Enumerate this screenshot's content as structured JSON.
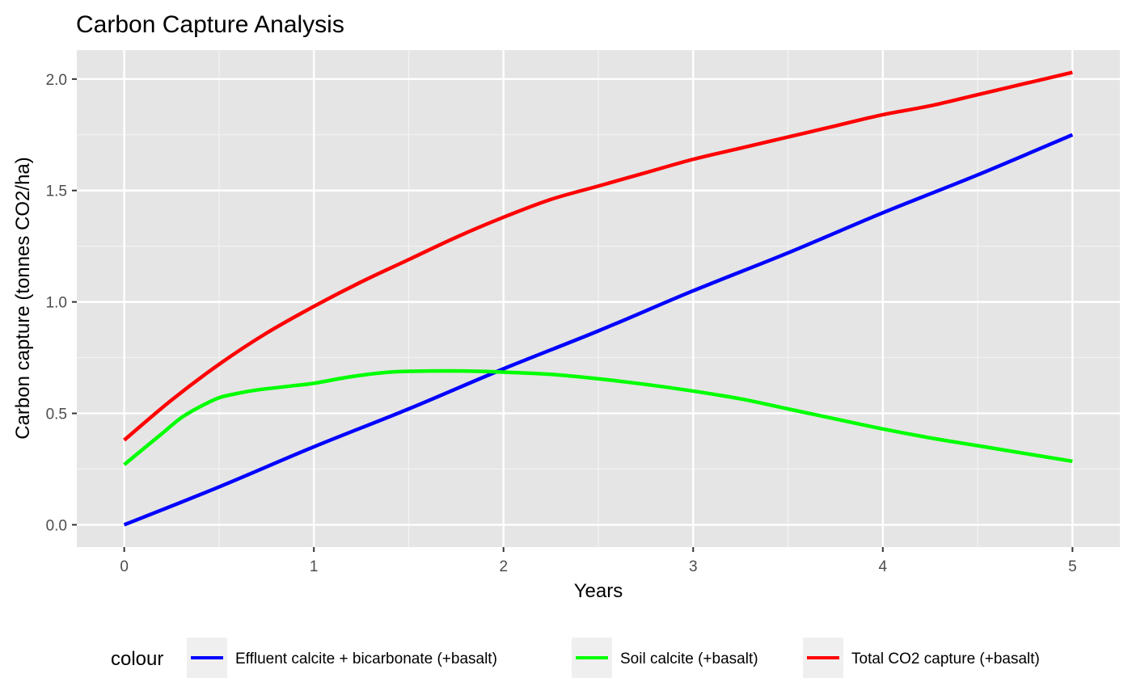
{
  "chart_data": {
    "type": "line",
    "title": "Carbon Capture Analysis",
    "xlabel": "Years",
    "ylabel": "Carbon capture (tonnes CO2/ha)",
    "xlim": [
      -0.25,
      5.25
    ],
    "ylim": [
      -0.1,
      2.13
    ],
    "x_ticks": [
      0,
      1,
      2,
      3,
      4,
      5
    ],
    "x_tick_labels": [
      "0",
      "1",
      "2",
      "3",
      "4",
      "5"
    ],
    "y_ticks": [
      0.0,
      0.5,
      1.0,
      1.5,
      2.0
    ],
    "y_tick_labels": [
      "0.0",
      "0.5",
      "1.0",
      "1.5",
      "2.0"
    ],
    "grid": true,
    "panel_background": "#e5e5e5",
    "legend": {
      "title": "colour",
      "position": "bottom"
    },
    "series": [
      {
        "name": "Effluent calcite + bicarbonate (+basalt)",
        "color": "#0000ff",
        "x": [
          0,
          0.5,
          1,
          1.5,
          2,
          2.5,
          3,
          3.5,
          4,
          4.5,
          5
        ],
        "y": [
          0.0,
          0.17,
          0.35,
          0.52,
          0.7,
          0.87,
          1.05,
          1.22,
          1.4,
          1.57,
          1.75
        ]
      },
      {
        "name": "Soil calcite (+basalt)",
        "color": "#00ff00",
        "x": [
          0,
          0.1,
          0.2,
          0.3,
          0.4,
          0.5,
          0.6,
          0.7,
          0.8,
          0.9,
          1.0,
          1.2,
          1.4,
          1.6,
          1.8,
          2.0,
          2.25,
          2.5,
          2.75,
          3.0,
          3.25,
          3.5,
          3.75,
          4.0,
          4.25,
          4.5,
          4.75,
          5.0
        ],
        "y": [
          0.27,
          0.34,
          0.41,
          0.48,
          0.53,
          0.57,
          0.59,
          0.605,
          0.615,
          0.625,
          0.635,
          0.665,
          0.685,
          0.69,
          0.69,
          0.685,
          0.675,
          0.655,
          0.63,
          0.6,
          0.565,
          0.52,
          0.475,
          0.43,
          0.39,
          0.355,
          0.32,
          0.285
        ]
      },
      {
        "name": "Total CO2 capture (+basalt)",
        "color": "#ff0000",
        "x": [
          0,
          0.25,
          0.5,
          0.75,
          1.0,
          1.25,
          1.5,
          1.75,
          2.0,
          2.25,
          2.5,
          2.75,
          3.0,
          3.25,
          3.5,
          3.75,
          4.0,
          4.25,
          4.5,
          4.75,
          5.0
        ],
        "y": [
          0.38,
          0.56,
          0.72,
          0.86,
          0.98,
          1.09,
          1.19,
          1.29,
          1.38,
          1.46,
          1.52,
          1.58,
          1.64,
          1.69,
          1.74,
          1.79,
          1.84,
          1.88,
          1.93,
          1.98,
          2.03
        ]
      }
    ]
  }
}
